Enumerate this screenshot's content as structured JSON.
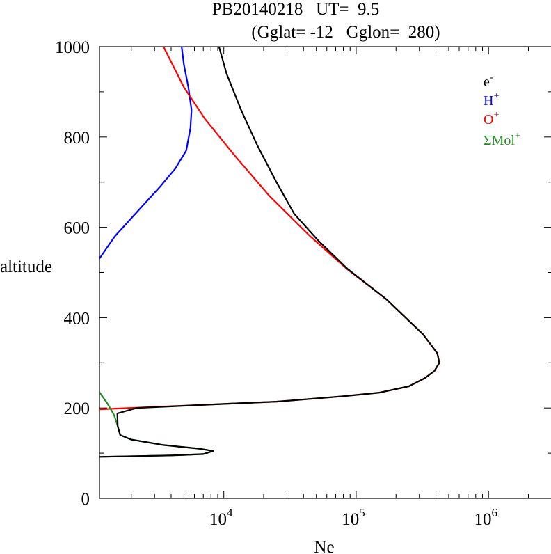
{
  "chart_data": {
    "type": "line",
    "title": "PB20140218   UT=  9.5",
    "subtitle": "(Gglat= -12   Gglon=  280)",
    "xlabel": "Ne",
    "ylabel": "altitude",
    "xscale": "log",
    "xlim": [
      1150,
      3000000
    ],
    "ylim": [
      0,
      1000
    ],
    "x_major_ticks": [
      10000,
      100000,
      1000000
    ],
    "x_tick_labels": [
      {
        "base": "10",
        "exp": "4"
      },
      {
        "base": "10",
        "exp": "5"
      },
      {
        "base": "10",
        "exp": "6"
      }
    ],
    "y_ticks": [
      0,
      200,
      400,
      600,
      800,
      1000
    ],
    "y_tick_labels": [
      "0",
      "200",
      "400",
      "600",
      "800",
      "1000"
    ],
    "grid": false,
    "legend_position": "top-right",
    "series": [
      {
        "name_base": "H",
        "name_sup": "+",
        "color": "#0000ff",
        "points": [
          [
            1150,
            531
          ],
          [
            1500,
            580
          ],
          [
            2000,
            620
          ],
          [
            3300,
            690
          ],
          [
            4300,
            730
          ],
          [
            5200,
            770
          ],
          [
            5600,
            820
          ],
          [
            5700,
            860
          ],
          [
            5400,
            910
          ],
          [
            5000,
            960
          ],
          [
            4800,
            1000
          ]
        ]
      },
      {
        "name_base": "O",
        "name_sup": "+",
        "color": "#ff0000",
        "points": [
          [
            1150,
            197
          ],
          [
            10000,
            209
          ],
          [
            25000,
            214
          ],
          [
            45000,
            220
          ],
          [
            80000,
            226
          ],
          [
            150000,
            234
          ],
          [
            250000,
            248
          ],
          [
            330000,
            266
          ],
          [
            390000,
            282
          ],
          [
            425000,
            300
          ],
          [
            410000,
            321
          ],
          [
            320000,
            363
          ],
          [
            170000,
            440
          ],
          [
            85000,
            508
          ],
          [
            45000,
            580
          ],
          [
            22000,
            670
          ],
          [
            12000,
            760
          ],
          [
            7200,
            840
          ],
          [
            5000,
            910
          ],
          [
            3500,
            1000
          ]
        ]
      },
      {
        "name_base": "ΣMol",
        "name_sup": "+",
        "color": "#228b22",
        "points": [
          [
            1150,
            235
          ],
          [
            1320,
            210
          ],
          [
            1480,
            185
          ],
          [
            1580,
            160
          ],
          [
            1650,
            140
          ],
          [
            2000,
            130
          ],
          [
            3500,
            118
          ],
          [
            6500,
            110
          ],
          [
            8300,
            105
          ],
          [
            7000,
            98
          ],
          [
            4000,
            95
          ],
          [
            1150,
            92
          ]
        ]
      },
      {
        "name_base": "e",
        "name_sup": "-",
        "color": "#000000",
        "points": [
          [
            1150,
            92
          ],
          [
            4000,
            95
          ],
          [
            7000,
            98
          ],
          [
            8300,
            105
          ],
          [
            6500,
            110
          ],
          [
            3500,
            118
          ],
          [
            2000,
            130
          ],
          [
            1650,
            140
          ],
          [
            1580,
            160
          ],
          [
            1570,
            188
          ],
          [
            2200,
            200
          ],
          [
            10000,
            209
          ],
          [
            25000,
            214
          ],
          [
            45000,
            220
          ],
          [
            80000,
            226
          ],
          [
            150000,
            234
          ],
          [
            250000,
            248
          ],
          [
            330000,
            266
          ],
          [
            390000,
            282
          ],
          [
            425000,
            300
          ],
          [
            410000,
            321
          ],
          [
            320000,
            363
          ],
          [
            170000,
            440
          ],
          [
            86000,
            508
          ],
          [
            52000,
            570
          ],
          [
            34000,
            630
          ],
          [
            25000,
            700
          ],
          [
            18000,
            780
          ],
          [
            13500,
            860
          ],
          [
            10500,
            940
          ],
          [
            9200,
            1000
          ]
        ]
      }
    ]
  }
}
